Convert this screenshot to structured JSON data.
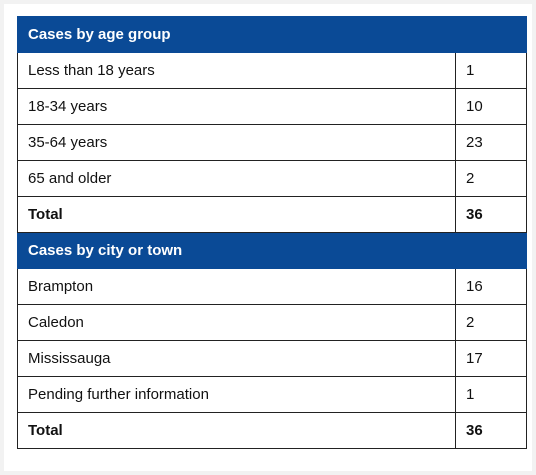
{
  "sections": [
    {
      "header": "Cases by age group",
      "rows": [
        {
          "label": "Less than 18 years",
          "value": "1"
        },
        {
          "label": "18-34 years",
          "value": "10"
        },
        {
          "label": "35-64 years",
          "value": "23"
        },
        {
          "label": "65 and older",
          "value": "2"
        }
      ],
      "total": {
        "label": "Total",
        "value": "36"
      }
    },
    {
      "header": "Cases by city or town",
      "rows": [
        {
          "label": "Brampton",
          "value": "16"
        },
        {
          "label": "Caledon",
          "value": "2"
        },
        {
          "label": "Mississauga",
          "value": "17"
        },
        {
          "label": "Pending further information",
          "value": "1"
        }
      ],
      "total": {
        "label": "Total",
        "value": "36"
      }
    }
  ]
}
